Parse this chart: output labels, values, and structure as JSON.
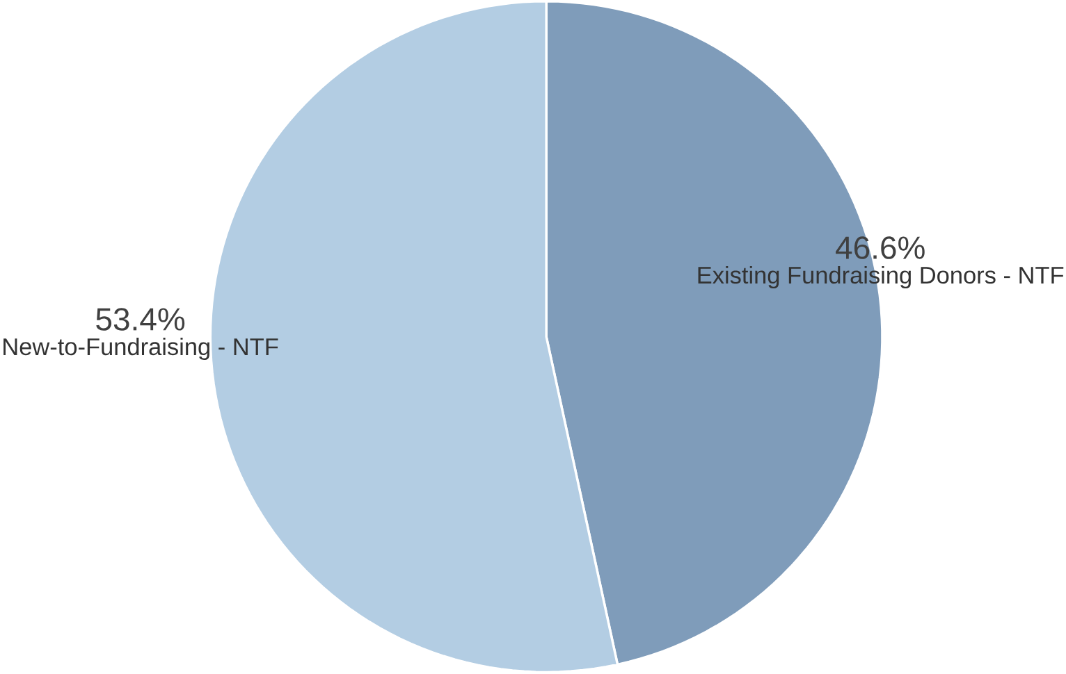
{
  "chart_data": {
    "type": "pie",
    "categories": [
      "Existing Fundraising Donors - NTF",
      "New-to-Fundraising - NTF"
    ],
    "values": [
      46.6,
      53.4
    ],
    "colors": [
      "#7f9cba",
      "#b3cde3"
    ],
    "value_labels": [
      "46.6%",
      "53.4%"
    ]
  }
}
